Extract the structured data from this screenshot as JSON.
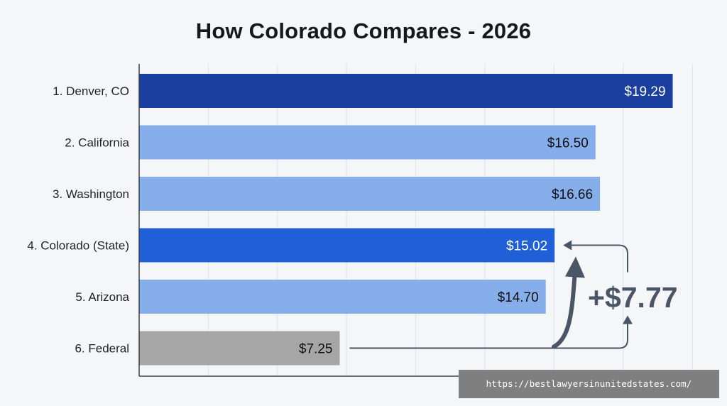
{
  "chart_data": {
    "type": "bar",
    "orientation": "horizontal",
    "title": "How Colorado Compares - 2026",
    "categories": [
      "1. Denver, CO",
      "2. California",
      "3. Washington",
      "4. Colorado (State)",
      "5. Arizona",
      "6. Federal"
    ],
    "values": [
      19.29,
      16.5,
      16.66,
      15.02,
      14.7,
      7.25
    ],
    "value_labels": [
      "$19.29",
      "$16.50",
      "$16.66",
      "$15.02",
      "$14.70",
      "$7.25"
    ],
    "bar_colors": [
      "#1a3f9e",
      "#86aeea",
      "#86aeea",
      "#1f5fd8",
      "#86aeea",
      "#a6a6a6"
    ],
    "label_colors": [
      "#ffffff",
      "#111111",
      "#111111",
      "#ffffff",
      "#111111",
      "#111111"
    ],
    "xlim": [
      0,
      20
    ],
    "grid": true,
    "annotation": {
      "text": "+$7.77",
      "from_category": "6. Federal",
      "to_category": "4. Colorado (State)",
      "color": "#4a5566"
    }
  },
  "watermark": {
    "text": "https://bestlawyersinunitedstates.com/"
  }
}
